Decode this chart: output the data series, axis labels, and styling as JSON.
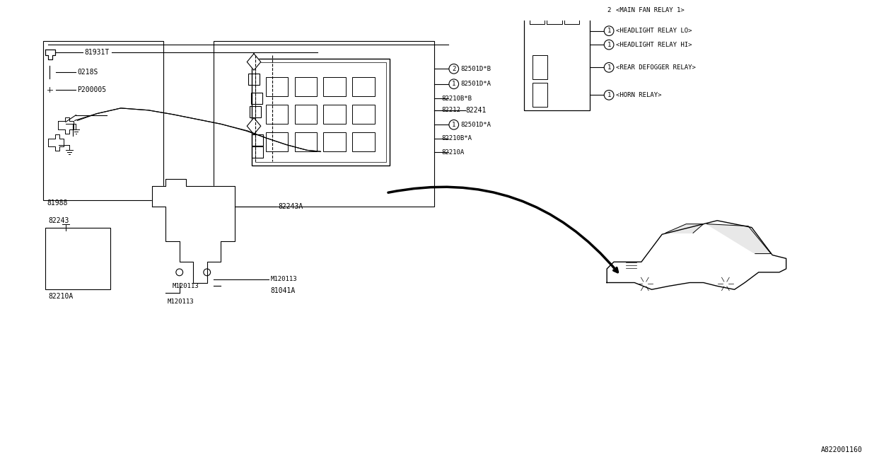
{
  "title": "",
  "bg_color": "#FFFFFF",
  "line_color": "#000000",
  "fig_width": 12.8,
  "fig_height": 6.4,
  "diagram_code": "A822001160",
  "parts": {
    "top_left_labels": [
      "81931T",
      "0218S",
      "P200005"
    ],
    "center_labels": [
      "82501D*B",
      "82501D*A",
      "82210B*B",
      "82212",
      "82501D*A",
      "82210B*A",
      "82210A"
    ],
    "center_circle_nums": [
      2,
      1,
      null,
      null,
      1,
      null,
      null
    ],
    "right_label": "82241",
    "bottom_labels": [
      "82243A",
      "M120113",
      "81041A",
      "82243",
      "M120113",
      "81988",
      "82210A"
    ],
    "relay_labels": [
      "<MAIN FAN RELAY 1>",
      "<HEADLIGHT RELAY LO>",
      "<HEADLIGHT RELAY HI>",
      "<REAR DEFOGGER RELAY>",
      "<HORN RELAY>"
    ],
    "relay_circle_nums": [
      2,
      1,
      1,
      1,
      1
    ]
  }
}
